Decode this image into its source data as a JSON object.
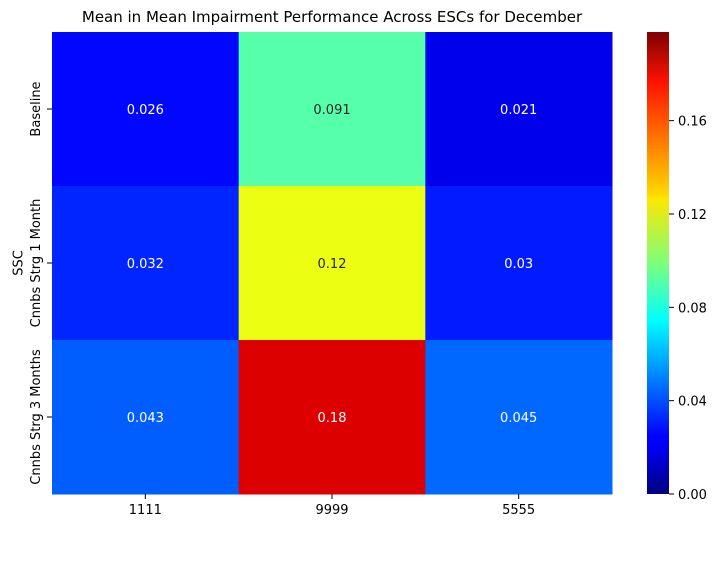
{
  "chart_data": {
    "type": "heatmap",
    "title": "Mean in Mean Impairment Performance Across ESCs for December",
    "xlabel": "",
    "ylabel": "SSC",
    "x_categories": [
      "1111",
      "9999",
      "5555"
    ],
    "y_categories": [
      "Baseline",
      "Cnnbs Strg 1 Month",
      "Cnnbs Strg 3 Months"
    ],
    "values": [
      [
        0.026,
        0.091,
        0.021
      ],
      [
        0.032,
        0.12,
        0.03
      ],
      [
        0.043,
        0.18,
        0.045
      ]
    ],
    "cell_labels": [
      [
        "0.026",
        "0.091",
        "0.021"
      ],
      [
        "0.032",
        "0.12",
        "0.03"
      ],
      [
        "0.043",
        "0.18",
        "0.045"
      ]
    ],
    "colormap": "jet",
    "colorbar": {
      "range": [
        0,
        0.198
      ],
      "ticks": [
        0.0,
        0.04,
        0.08,
        0.12,
        0.16
      ],
      "tick_labels": [
        "0.00",
        "0.04",
        "0.08",
        "0.12",
        "0.16"
      ]
    }
  }
}
